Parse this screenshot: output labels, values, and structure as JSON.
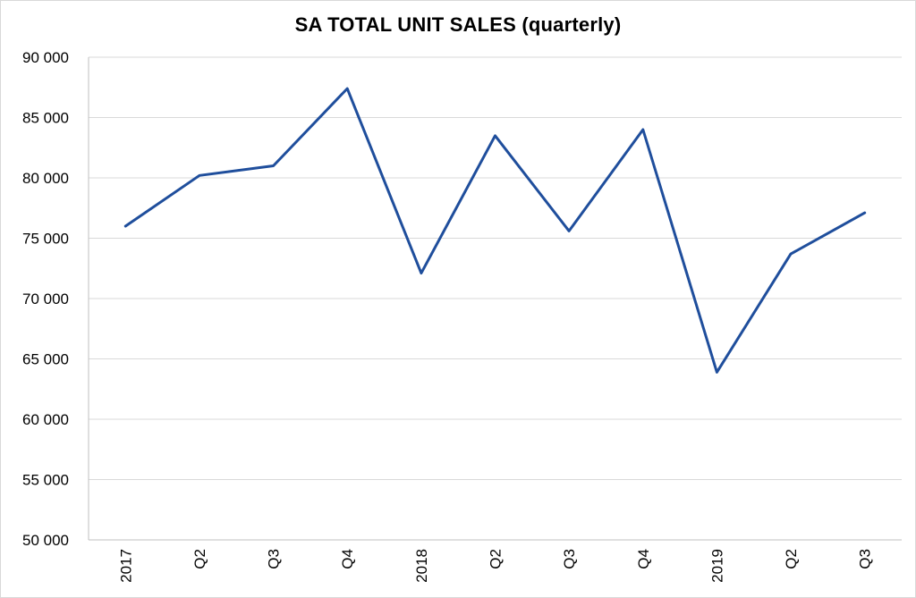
{
  "chart_data": {
    "type": "line",
    "title": "SA TOTAL UNIT SALES (quarterly)",
    "xlabel": "",
    "ylabel": "",
    "categories": [
      "2017",
      "Q2",
      "Q3",
      "Q4",
      "2018",
      "Q2",
      "Q3",
      "Q4",
      "2019",
      "Q2",
      "Q3"
    ],
    "series": [
      {
        "values": [
          76000,
          80200,
          81000,
          87400,
          72100,
          83500,
          75600,
          84000,
          63900,
          73700,
          77100
        ]
      }
    ],
    "ylim": [
      50000,
      90000
    ],
    "y_ticks": [
      50000,
      55000,
      60000,
      65000,
      70000,
      75000,
      80000,
      85000,
      90000
    ],
    "y_tick_labels": [
      "50 000",
      "55 000",
      "60 000",
      "65 000",
      "70 000",
      "75 000",
      "80 000",
      "85 000",
      "90 000"
    ],
    "grid": "horizontal",
    "legend": "none",
    "colors": {
      "line": "#1f4e9c",
      "grid": "#d9d9d9",
      "axis": "#bfbfbf"
    }
  }
}
